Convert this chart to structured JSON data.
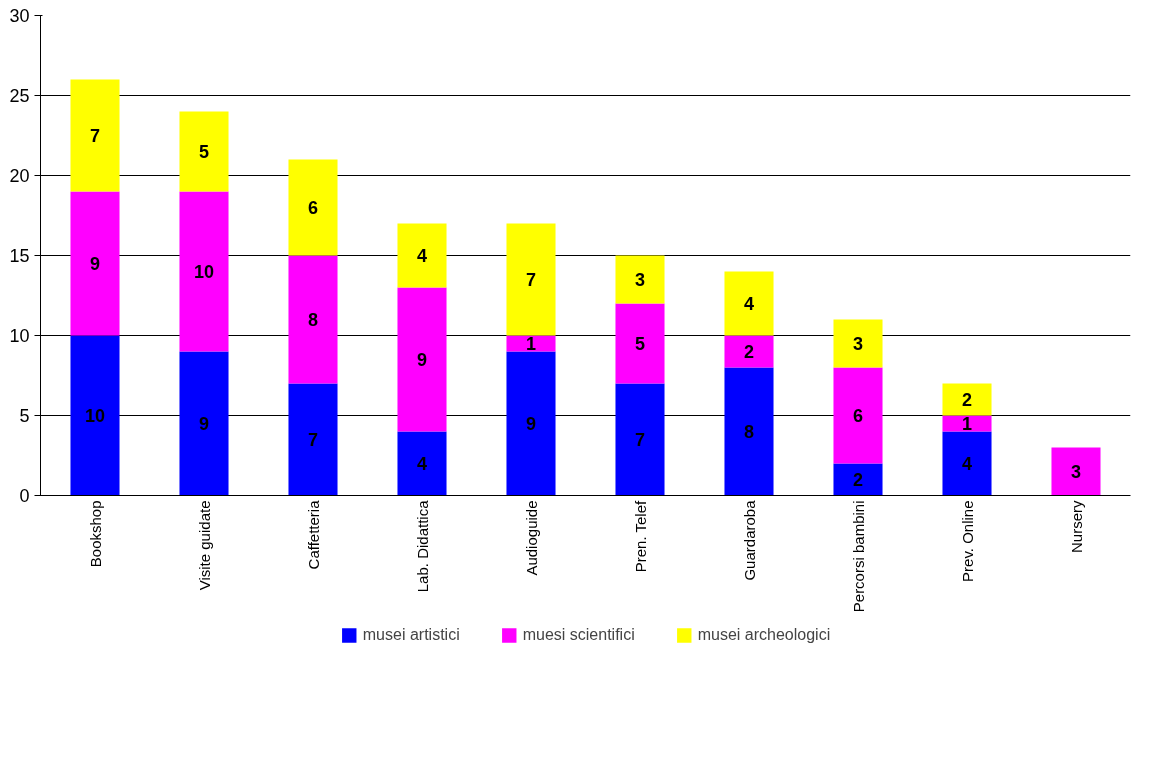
{
  "chart_data": {
    "type": "bar",
    "stacked": true,
    "categories": [
      "Bookshop",
      "Visite guidate",
      "Caffetteria",
      "Lab. Didattica",
      "Audioguide",
      "Pren. Telef",
      "Guardaroba",
      "Percorsi bambini",
      "Prev. Online",
      "Nursery"
    ],
    "series": [
      {
        "name": "musei artistici",
        "color": "#0000ff",
        "values": [
          10,
          9,
          7,
          4,
          9,
          7,
          8,
          2,
          4,
          null
        ]
      },
      {
        "name": "muesi scientifici",
        "color": "#ff00ff",
        "values": [
          9,
          10,
          8,
          9,
          1,
          5,
          2,
          6,
          1,
          3
        ]
      },
      {
        "name": "musei archeologici",
        "color": "#ffff00",
        "values": [
          7,
          5,
          6,
          4,
          7,
          3,
          4,
          3,
          2,
          null
        ]
      }
    ],
    "ylim": [
      0,
      30
    ],
    "yticks": [
      0,
      5,
      10,
      15,
      20,
      25,
      30
    ],
    "grid": "y",
    "legend": "bottom",
    "data_labels": true
  }
}
